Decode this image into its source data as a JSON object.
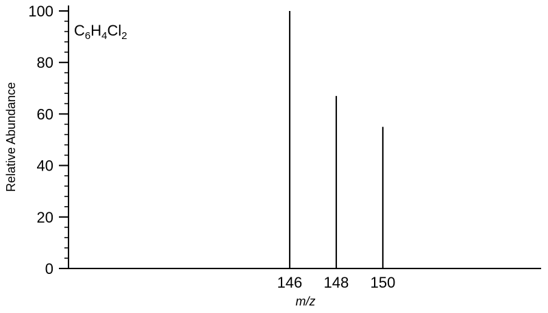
{
  "chart_data": {
    "type": "bar",
    "annotation": {
      "parts": [
        {
          "text": "C",
          "sub": false
        },
        {
          "text": "6",
          "sub": true
        },
        {
          "text": "H",
          "sub": false
        },
        {
          "text": "4",
          "sub": true
        },
        {
          "text": "Cl",
          "sub": false
        },
        {
          "text": "2",
          "sub": true
        }
      ]
    },
    "xlabel": "m/z",
    "ylabel": "Relative Abundance",
    "x": [
      146,
      148,
      150
    ],
    "values": [
      100,
      67,
      55
    ],
    "x_tick_labels": [
      "146",
      "148",
      "150"
    ],
    "y_ticks": [
      0,
      20,
      40,
      60,
      80,
      100
    ],
    "y_tick_labels": [
      "0",
      "20",
      "40",
      "60",
      "80",
      "100"
    ],
    "ylim": [
      0,
      100
    ],
    "xlim": [
      136.5,
      156.8
    ],
    "grid": false,
    "legend": "none"
  }
}
